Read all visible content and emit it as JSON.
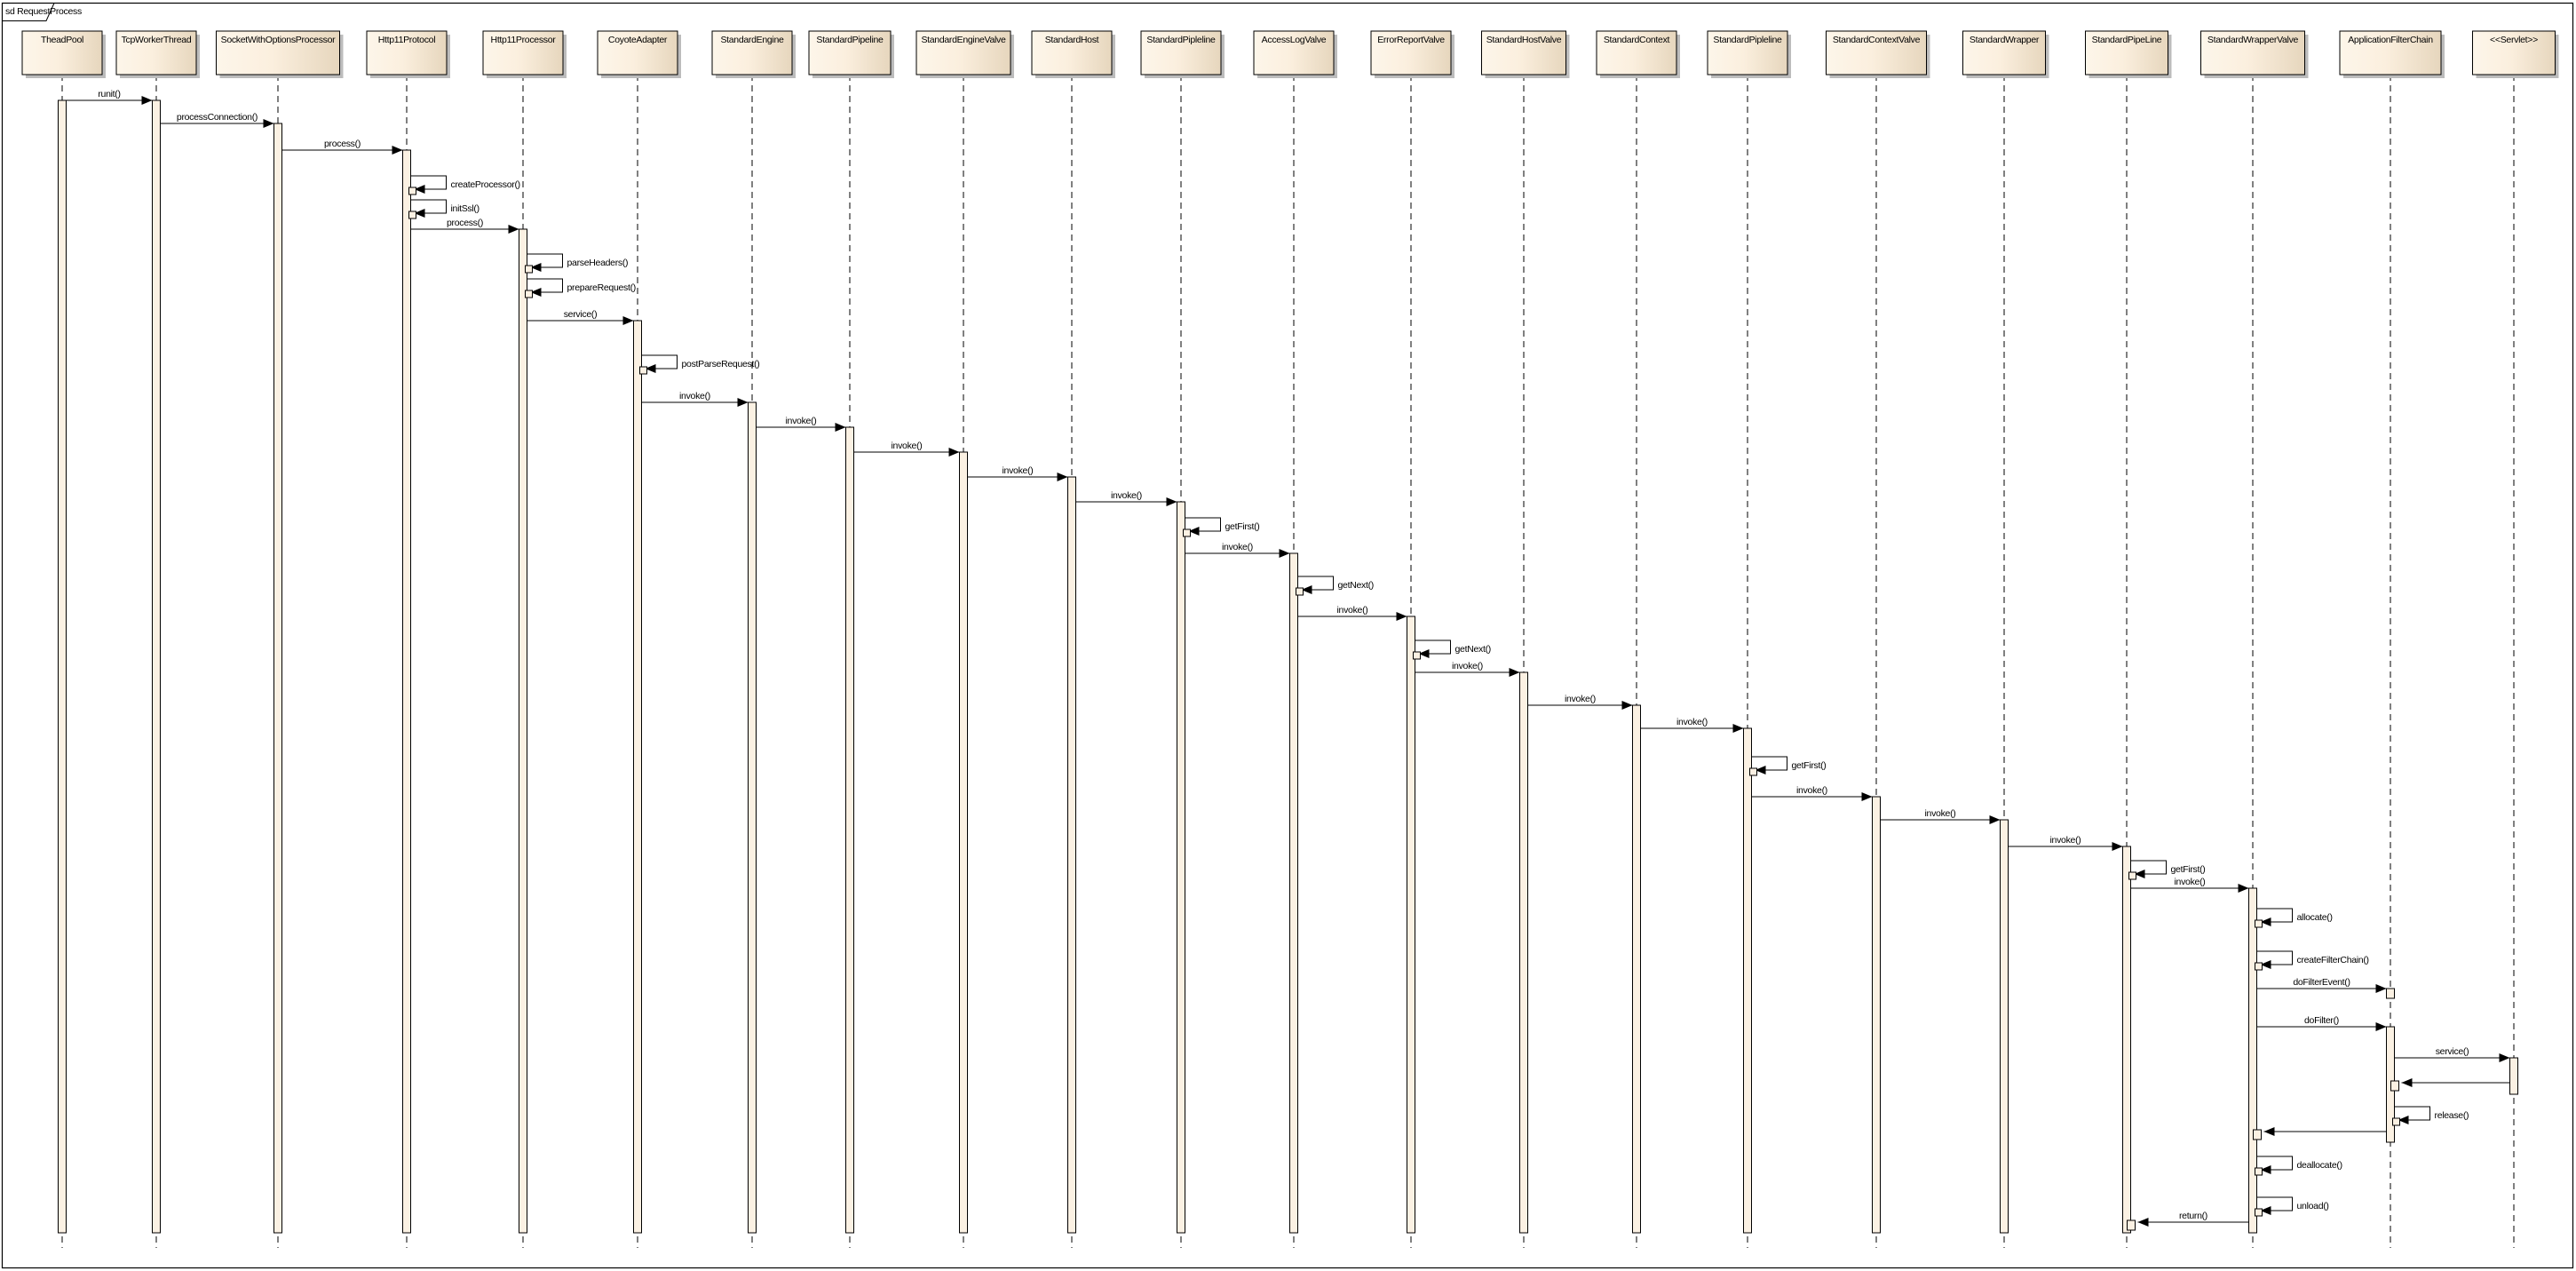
{
  "frame": {
    "title": "sd RequestProcess"
  },
  "colors": {
    "lifeline_fill_light": "#fdf6ea",
    "lifeline_fill_dark": "#e6d6bd",
    "activation_fill": "#fbf1e3",
    "line": "#000000"
  },
  "lifelines": [
    "TheadPool",
    "TcpWorkerThread",
    "SocketWithOptionsProcessor",
    "Http11Protocol",
    "Http11Processor",
    "CoyoteAdapter",
    "StandardEngine",
    "StandardPipeline",
    "StandardEngineValve",
    "StandardHost",
    "StandardPipleline",
    "AccessLogValve",
    "ErrorReportValve",
    "StandardHostValve",
    "StandardContext",
    "StandardPipleline",
    "StandardContextValve",
    "StandardWrapper",
    "StandardPipeLine",
    "StandardWrapperValve",
    "ApplicationFilterChain",
    "<<Servlet>>"
  ],
  "messages": [
    {
      "from": 0,
      "to": 1,
      "label": "runit()"
    },
    {
      "from": 1,
      "to": 2,
      "label": "processConnection()"
    },
    {
      "from": 2,
      "to": 3,
      "label": "process()"
    },
    {
      "from": 3,
      "to": 3,
      "label": "createProcessor()"
    },
    {
      "from": 3,
      "to": 3,
      "label": "initSsl()"
    },
    {
      "from": 3,
      "to": 4,
      "label": "process()"
    },
    {
      "from": 4,
      "to": 4,
      "label": "parseHeaders()"
    },
    {
      "from": 4,
      "to": 4,
      "label": "prepareRequest()"
    },
    {
      "from": 4,
      "to": 5,
      "label": "service()"
    },
    {
      "from": 5,
      "to": 5,
      "label": "postParseRequest()"
    },
    {
      "from": 5,
      "to": 6,
      "label": "invoke()"
    },
    {
      "from": 6,
      "to": 7,
      "label": "invoke()"
    },
    {
      "from": 7,
      "to": 8,
      "label": "invoke()"
    },
    {
      "from": 8,
      "to": 9,
      "label": "invoke()"
    },
    {
      "from": 9,
      "to": 10,
      "label": "invoke()"
    },
    {
      "from": 10,
      "to": 10,
      "label": "getFirst()"
    },
    {
      "from": 10,
      "to": 11,
      "label": "invoke()"
    },
    {
      "from": 11,
      "to": 11,
      "label": "getNext()"
    },
    {
      "from": 11,
      "to": 12,
      "label": "invoke()"
    },
    {
      "from": 12,
      "to": 12,
      "label": "getNext()"
    },
    {
      "from": 12,
      "to": 13,
      "label": "invoke()"
    },
    {
      "from": 13,
      "to": 14,
      "label": "invoke()"
    },
    {
      "from": 14,
      "to": 15,
      "label": "invoke()"
    },
    {
      "from": 15,
      "to": 15,
      "label": "getFirst()"
    },
    {
      "from": 15,
      "to": 16,
      "label": "invoke()"
    },
    {
      "from": 16,
      "to": 17,
      "label": "invoke()"
    },
    {
      "from": 17,
      "to": 18,
      "label": "invoke()"
    },
    {
      "from": 18,
      "to": 18,
      "label": "getFirst()"
    },
    {
      "from": 18,
      "to": 19,
      "label": "invoke()"
    },
    {
      "from": 19,
      "to": 19,
      "label": "allocate()"
    },
    {
      "from": 19,
      "to": 19,
      "label": "createFilterChain()"
    },
    {
      "from": 19,
      "to": 20,
      "label": "doFilterEvent()"
    },
    {
      "from": 19,
      "to": 20,
      "label": "doFilter()"
    },
    {
      "from": 20,
      "to": 21,
      "label": "service()"
    },
    {
      "from": 21,
      "to": 20,
      "label": ""
    },
    {
      "from": 20,
      "to": 20,
      "label": "release()"
    },
    {
      "from": 20,
      "to": 19,
      "label": ""
    },
    {
      "from": 19,
      "to": 19,
      "label": "deallocate()"
    },
    {
      "from": 19,
      "to": 19,
      "label": "unload()"
    },
    {
      "from": 19,
      "to": 18,
      "label": "return()"
    }
  ]
}
